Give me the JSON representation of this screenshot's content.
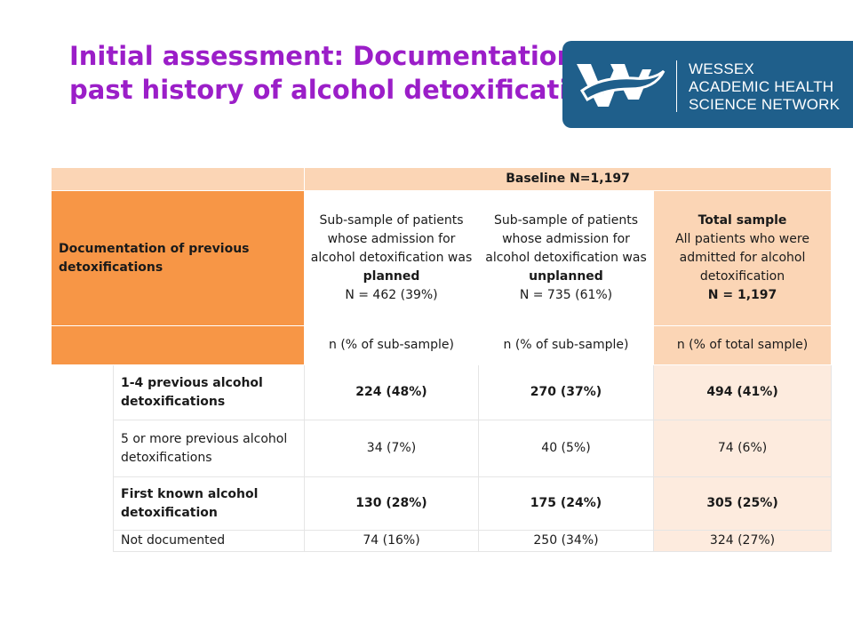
{
  "title": "Initial assessment: Documentation of past history of alcohol detoxification",
  "logo": {
    "line1": "WESSEX",
    "line2": "ACADEMIC HEALTH",
    "line3": "SCIENCE NETWORK",
    "icon": "wessex-ahsn-mark",
    "bg_color": "#1f5f8b"
  },
  "colors": {
    "title": "#9b1ec8",
    "header_peach": "#fbd5b5",
    "header_orange": "#f79646",
    "total_col": "#fdebde"
  },
  "table": {
    "baseline_header": "Baseline N=1,197",
    "row_label_header": "Documentation of previous detoxifications",
    "columns": [
      {
        "line1": "Sub-sample of patients whose admission for alcohol detoxification was",
        "emph": "planned",
        "n": "N = 462 (39%)"
      },
      {
        "line1": "Sub-sample of patients whose admission for alcohol detoxification was",
        "emph": "unplanned",
        "n": "N = 735 (61%)"
      },
      {
        "heading": "Total sample",
        "line1": "All patients who were admitted for alcohol detoxification",
        "n": "N = 1,197"
      }
    ],
    "units": [
      "n (% of sub-sample)",
      "n (% of sub-sample)",
      "n (% of total sample)"
    ],
    "rows": [
      {
        "label": "1-4 previous alcohol detoxifications",
        "values": [
          "224 (48%)",
          "270 (37%)",
          "494 (41%)"
        ],
        "bold": true
      },
      {
        "label": "5 or more previous alcohol detoxifications",
        "values": [
          "34 (7%)",
          "40 (5%)",
          "74 (6%)"
        ],
        "bold": false
      },
      {
        "label": "First known alcohol detoxification",
        "values": [
          "130 (28%)",
          "175 (24%)",
          "305 (25%)"
        ],
        "bold": true
      },
      {
        "label": "Not documented",
        "values": [
          "74 (16%)",
          "250 (34%)",
          "324 (27%)"
        ],
        "bold": false
      }
    ]
  }
}
